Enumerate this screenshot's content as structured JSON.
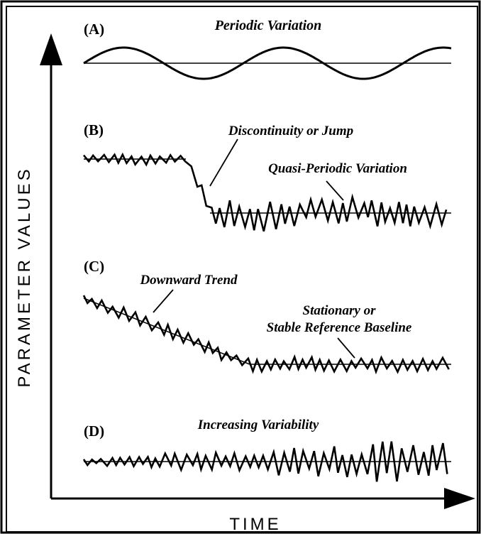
{
  "chart_data": {
    "type": "line",
    "xlabel": "TIME",
    "ylabel": "PARAMETER VALUES",
    "grid": false,
    "panels": [
      {
        "id": "A",
        "label": "(A)",
        "title": "Periodic Variation",
        "pattern": "sinusoid",
        "cycles": 2.3,
        "baseline": true,
        "annotations": []
      },
      {
        "id": "B",
        "label": "(B)",
        "title": "",
        "pattern": "noisy-step-down",
        "baseline": "after-jump",
        "annotations": [
          {
            "text": "Discontinuity or Jump"
          },
          {
            "text": "Quasi-Periodic Variation"
          }
        ]
      },
      {
        "id": "C",
        "label": "(C)",
        "title": "",
        "pattern": "noisy-trend-then-flat",
        "baseline": "trend-and-flat",
        "annotations": [
          {
            "text": "Downward Trend"
          },
          {
            "text": "Stationary or"
          },
          {
            "text": "Stable Reference Baseline"
          }
        ]
      },
      {
        "id": "D",
        "label": "(D)",
        "title": "Increasing Variability",
        "pattern": "growing-noise",
        "baseline": true,
        "annotations": []
      }
    ]
  }
}
